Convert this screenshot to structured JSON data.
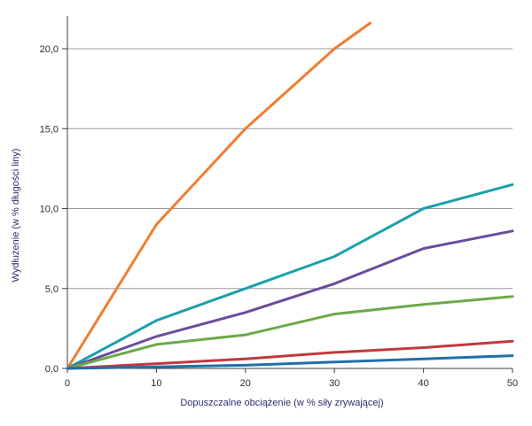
{
  "chart_data": {
    "type": "line",
    "title": "",
    "xlabel": "Dopuszczalne obciążenie (w % siły zrywającej)",
    "ylabel": "Wydłużenie (w % długości liny)",
    "xlim": [
      0,
      50
    ],
    "ylim": [
      0,
      22
    ],
    "x_ticks": [
      0,
      10,
      20,
      30,
      40,
      50
    ],
    "x_tick_labels": [
      "0",
      "10",
      "20",
      "30",
      "40",
      "50"
    ],
    "y_ticks": [
      0,
      5,
      10,
      15,
      20
    ],
    "y_tick_labels": [
      "0,0",
      "5,0",
      "10,0",
      "15,0",
      "20,0"
    ],
    "grid": "horizontal",
    "legend": "none",
    "series": [
      {
        "color": "#f07d30",
        "x": [
          0,
          10,
          20,
          30,
          34
        ],
        "y": [
          0,
          9.0,
          15.0,
          20.0,
          21.6
        ]
      },
      {
        "color": "#1aa0ab",
        "x": [
          0,
          10,
          20,
          30,
          40,
          50
        ],
        "y": [
          0,
          3.0,
          5.0,
          7.0,
          10.0,
          11.5
        ]
      },
      {
        "color": "#6a4c9c",
        "x": [
          0,
          10,
          20,
          30,
          40,
          50
        ],
        "y": [
          0,
          2.0,
          3.5,
          5.3,
          7.5,
          8.6
        ]
      },
      {
        "color": "#6aaa48",
        "x": [
          0,
          10,
          20,
          30,
          40,
          50
        ],
        "y": [
          0,
          1.5,
          2.1,
          3.4,
          4.0,
          4.5
        ]
      },
      {
        "color": "#c0393f",
        "x": [
          0,
          10,
          20,
          30,
          40,
          50
        ],
        "y": [
          0,
          0.3,
          0.6,
          1.0,
          1.3,
          1.7
        ]
      },
      {
        "color": "#1f70a8",
        "x": [
          0,
          10,
          20,
          30,
          40,
          50
        ],
        "y": [
          0,
          0.1,
          0.2,
          0.4,
          0.6,
          0.8
        ]
      }
    ]
  }
}
